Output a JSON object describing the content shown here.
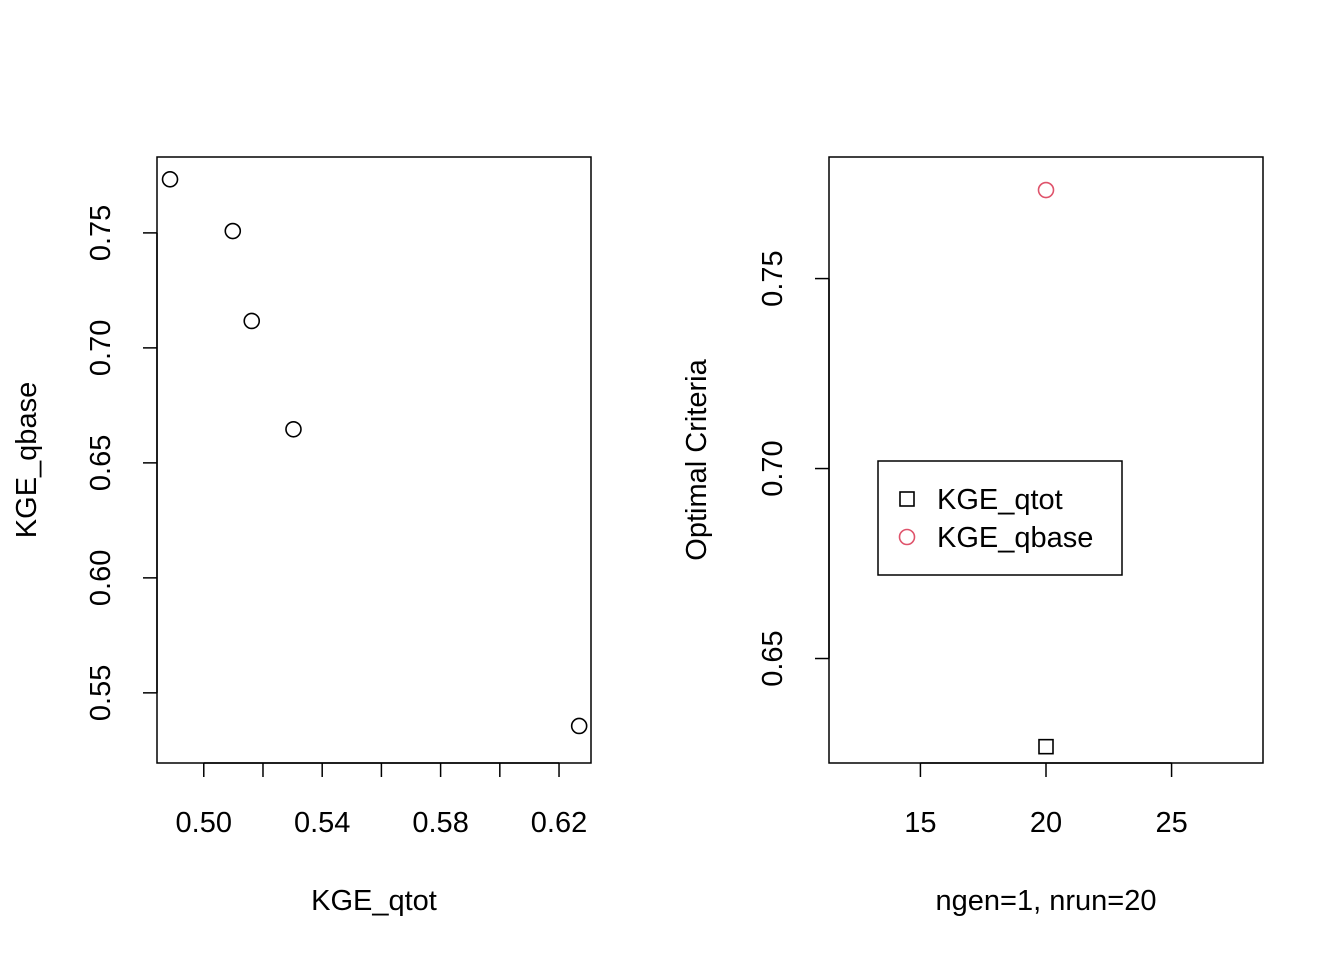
{
  "chart_data": [
    {
      "type": "scatter",
      "title": "",
      "xlabel": "KGE_qtot",
      "ylabel": "KGE_qbase",
      "xlim": [
        0.4842,
        0.6308
      ],
      "ylim": [
        0.5195,
        0.783
      ],
      "x_ticks": [
        0.5,
        0.52,
        0.54,
        0.56,
        0.58,
        0.6,
        0.62
      ],
      "x_tick_labels": [
        "0.50",
        "",
        "0.54",
        "",
        "0.58",
        "",
        "0.62"
      ],
      "y_ticks": [
        0.55,
        0.6,
        0.65,
        0.7,
        0.75
      ],
      "y_tick_labels": [
        "0.55",
        "0.60",
        "0.65",
        "0.70",
        "0.75"
      ],
      "grid": false,
      "series": [
        {
          "marker": "open-circle",
          "color": "#000000",
          "points": [
            {
              "x": 0.4886,
              "y": 0.7733
            },
            {
              "x": 0.5098,
              "y": 0.7508
            },
            {
              "x": 0.5162,
              "y": 0.7117
            },
            {
              "x": 0.5303,
              "y": 0.6646
            },
            {
              "x": 0.6268,
              "y": 0.5356
            }
          ]
        }
      ]
    },
    {
      "type": "scatter",
      "title": "",
      "xlabel": "ngen=1, nrun=20",
      "ylabel": "Optimal Criteria",
      "xlim": [
        11.36,
        28.64
      ],
      "ylim": [
        0.6225,
        0.782
      ],
      "x_ticks": [
        15,
        20,
        25
      ],
      "x_tick_labels": [
        "15",
        "20",
        "25"
      ],
      "y_ticks": [
        0.65,
        0.7,
        0.75
      ],
      "y_tick_labels": [
        "0.65",
        "0.70",
        "0.75"
      ],
      "grid": false,
      "legend": {
        "position": "center-left",
        "entries": [
          {
            "label": "KGE_qtot",
            "marker": "open-square",
            "color": "#000000"
          },
          {
            "label": "KGE_qbase",
            "marker": "open-circle",
            "color": "#DF536B"
          }
        ]
      },
      "series": [
        {
          "name": "KGE_qtot",
          "marker": "open-square",
          "color": "#000000",
          "points": [
            {
              "x": 20,
              "y": 0.6268
            }
          ]
        },
        {
          "name": "KGE_qbase",
          "marker": "open-circle",
          "color": "#DF536B",
          "points": [
            {
              "x": 20,
              "y": 0.7733
            }
          ]
        }
      ]
    }
  ]
}
